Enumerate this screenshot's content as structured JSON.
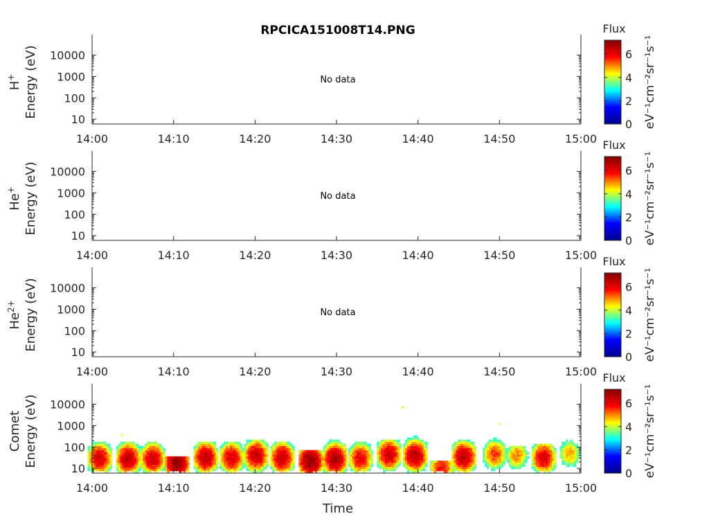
{
  "chart_data": {
    "type": "heatmap",
    "title": "RPCICA151008T14.PNG",
    "xlabel": "Time",
    "x_ticks": [
      "14:00",
      "14:10",
      "14:20",
      "14:30",
      "14:40",
      "14:50",
      "15:00"
    ],
    "x_range_minutes": [
      0,
      60
    ],
    "y_scale": "log",
    "y_range": [
      6,
      50000
    ],
    "y_ticks": [
      "10",
      "100",
      "1000",
      "10000"
    ],
    "colorbar": {
      "title": "Flux",
      "units": "eV⁻¹cm⁻²sr⁻¹s⁻¹",
      "ticks": [
        "0",
        "2",
        "4",
        "6"
      ],
      "range": [
        0,
        7.2
      ],
      "colormap": [
        "#00008f",
        "#0000ff",
        "#00ffff",
        "#ffff00",
        "#ff0000",
        "#800000"
      ]
    },
    "panels": [
      {
        "species": "H",
        "charge": "+",
        "ylabel": "Energy (eV)",
        "message": "No data",
        "bursts": []
      },
      {
        "species": "He",
        "charge": "+",
        "ylabel": "Energy (eV)",
        "message": "No data",
        "bursts": []
      },
      {
        "species": "He",
        "charge": "2+",
        "ylabel": "Energy (eV)",
        "message": "No data",
        "bursts": []
      },
      {
        "species": "Comet",
        "charge": "",
        "ylabel": "Energy (eV)",
        "message": "",
        "bursts": [
          {
            "t": 0.8,
            "peak_energy": 30,
            "max_energy": 350,
            "peak_flux": 6.2
          },
          {
            "t": 4.3,
            "peak_energy": 28,
            "max_energy": 150,
            "peak_flux": 6.5
          },
          {
            "t": 7.3,
            "peak_energy": 28,
            "max_energy": 150,
            "peak_flux": 6.3
          },
          {
            "t": 10.3,
            "peak_energy": 18,
            "max_energy": 35,
            "peak_flux": 7.0
          },
          {
            "t": 13.8,
            "peak_energy": 32,
            "max_energy": 150,
            "peak_flux": 6.5
          },
          {
            "t": 17.0,
            "peak_energy": 32,
            "max_energy": 150,
            "peak_flux": 6.2
          },
          {
            "t": 20.0,
            "peak_energy": 40,
            "max_energy": 200,
            "peak_flux": 6.4
          },
          {
            "t": 23.2,
            "peak_energy": 32,
            "max_energy": 180,
            "peak_flux": 6.4
          },
          {
            "t": 26.7,
            "peak_energy": 22,
            "max_energy": 60,
            "peak_flux": 7.0
          },
          {
            "t": 29.7,
            "peak_energy": 28,
            "max_energy": 300,
            "peak_flux": 6.7
          },
          {
            "t": 32.8,
            "peak_energy": 30,
            "max_energy": 150,
            "peak_flux": 6.0
          },
          {
            "t": 36.3,
            "peak_energy": 45,
            "max_energy": 220,
            "peak_flux": 6.3
          },
          {
            "t": 39.5,
            "peak_energy": 40,
            "max_energy": 300,
            "peak_flux": 6.5
          },
          {
            "t": 42.8,
            "peak_energy": 10,
            "max_energy": 22,
            "peak_flux": 5.8
          },
          {
            "t": 45.5,
            "peak_energy": 35,
            "max_energy": 200,
            "peak_flux": 6.5
          },
          {
            "t": 49.3,
            "peak_energy": 45,
            "max_energy": 350,
            "peak_flux": 5.5
          },
          {
            "t": 52.0,
            "peak_energy": 40,
            "max_energy": 100,
            "peak_flux": 5.0
          },
          {
            "t": 55.3,
            "peak_energy": 32,
            "max_energy": 120,
            "peak_flux": 6.2
          },
          {
            "t": 58.5,
            "peak_energy": 50,
            "max_energy": 280,
            "peak_flux": 4.8
          }
        ],
        "isolated_points": [
          {
            "t": 38.0,
            "energy": 7000,
            "flux": 4.5
          },
          {
            "t": 49.8,
            "energy": 1200,
            "flux": 4.2
          },
          {
            "t": 3.5,
            "energy": 350,
            "flux": 4.3
          }
        ]
      }
    ]
  }
}
